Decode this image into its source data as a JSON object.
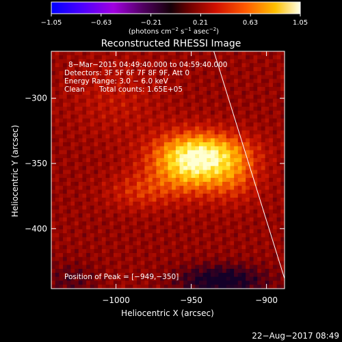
{
  "chart_data": {
    "type": "heatmap",
    "title": "Reconstructed RHESSI Image",
    "xlabel": "Heliocentric X (arcsec)",
    "ylabel": "Heliocentric Y (arcsec)",
    "xlim": [
      -1043,
      -888
    ],
    "ylim": [
      -446,
      -264
    ],
    "x_ticks": [
      {
        "value": -1000,
        "label": "−1000"
      },
      {
        "value": -950,
        "label": "−950"
      },
      {
        "value": -900,
        "label": "−900"
      }
    ],
    "y_ticks": [
      {
        "value": -300,
        "label": "−300"
      },
      {
        "value": -350,
        "label": "−350"
      },
      {
        "value": -400,
        "label": "−400"
      }
    ],
    "colorbar": {
      "range": [
        -1.05,
        1.05
      ],
      "ticks": [
        "−1.05",
        "−0.63",
        "−0.21",
        "0.21",
        "0.63",
        "1.05"
      ],
      "label_prefix": "(photons cm",
      "label_sup1": "−2",
      "label_mid1": " s",
      "label_sup2": "−1",
      "label_mid2": " asec",
      "label_sup3": "−2",
      "label_suffix": ")",
      "colormap": "hot (black–purple–red–orange–yellow–white)"
    },
    "annotations": {
      "time_range": "8−Mar−2015 04:49:40.000 to 04:59:40.000",
      "detectors": "Detectors: 3F 5F 6F 7F 8F 9F, Att 0",
      "energy": "Energy Range: 3.0 − 6.0 keV",
      "method": "Clean",
      "counts": "Total counts: 1.65E+05",
      "peak": "Position of Peak = [−949,−350]"
    },
    "peak": {
      "x": -949,
      "y": -350
    },
    "limb_line": {
      "x": [
        -935,
        -887
      ],
      "y": [
        -264,
        -442
      ]
    }
  },
  "footer": {
    "date": "22−Aug−2017 08:49"
  }
}
